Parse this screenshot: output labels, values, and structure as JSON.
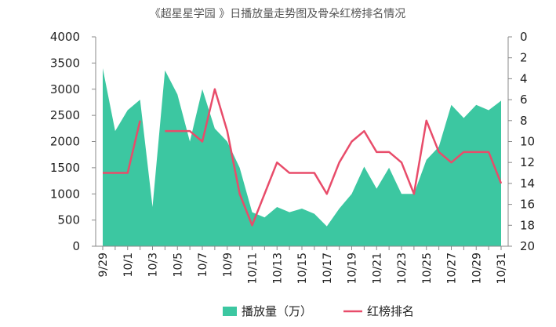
{
  "chart_data": {
    "type": "area",
    "title": "《超星星学园 》日播放量走势图及骨朵红榜排名情况",
    "x": [
      "9/29",
      "9/30",
      "10/1",
      "10/2",
      "10/3",
      "10/4",
      "10/5",
      "10/6",
      "10/7",
      "10/8",
      "10/9",
      "10/10",
      "10/11",
      "10/12",
      "10/13",
      "10/14",
      "10/15",
      "10/16",
      "10/17",
      "10/18",
      "10/19",
      "10/20",
      "10/21",
      "10/22",
      "10/23",
      "10/24",
      "10/25",
      "10/26",
      "10/27",
      "10/28",
      "10/29",
      "10/30",
      "10/31"
    ],
    "x_tick_labels": [
      "9/29",
      "10/1",
      "10/3",
      "10/5",
      "10/7",
      "10/9",
      "10/11",
      "10/13",
      "10/15",
      "10/17",
      "10/19",
      "10/21",
      "10/23",
      "10/25",
      "10/27",
      "10/29",
      "10/31"
    ],
    "left_axis": {
      "ylim": [
        0,
        4000
      ],
      "ticks": [
        "0",
        "500",
        "1000",
        "1500",
        "2000",
        "2500",
        "3000",
        "3500",
        "4000"
      ]
    },
    "right_axis": {
      "ylim": [
        0,
        20
      ],
      "reversed": true,
      "ticks": [
        "0",
        "2",
        "4",
        "6",
        "8",
        "10",
        "12",
        "14",
        "16",
        "18",
        "20"
      ]
    },
    "series": [
      {
        "name": "播放量（万）",
        "kind": "area",
        "axis": "left",
        "color": "#3cc7a1",
        "values": [
          3400,
          2200,
          2600,
          2800,
          750,
          3360,
          2900,
          2000,
          3000,
          2250,
          2000,
          1500,
          650,
          550,
          750,
          650,
          720,
          620,
          380,
          720,
          1000,
          1520,
          1100,
          1500,
          1000,
          1000,
          1650,
          1900,
          2700,
          2450,
          2700,
          2600,
          2780
        ]
      },
      {
        "name": "红榜排名",
        "kind": "line",
        "axis": "right",
        "color": "#e84c6a",
        "values": [
          13,
          13,
          13,
          8,
          null,
          9,
          9,
          9,
          10,
          5,
          9,
          15,
          18,
          15,
          12,
          13,
          13,
          13,
          15,
          12,
          10,
          9,
          11,
          11,
          12,
          15,
          8,
          11,
          12,
          11,
          11,
          11,
          14
        ]
      }
    ],
    "legend": {
      "position": "bottom"
    },
    "grid": false
  }
}
